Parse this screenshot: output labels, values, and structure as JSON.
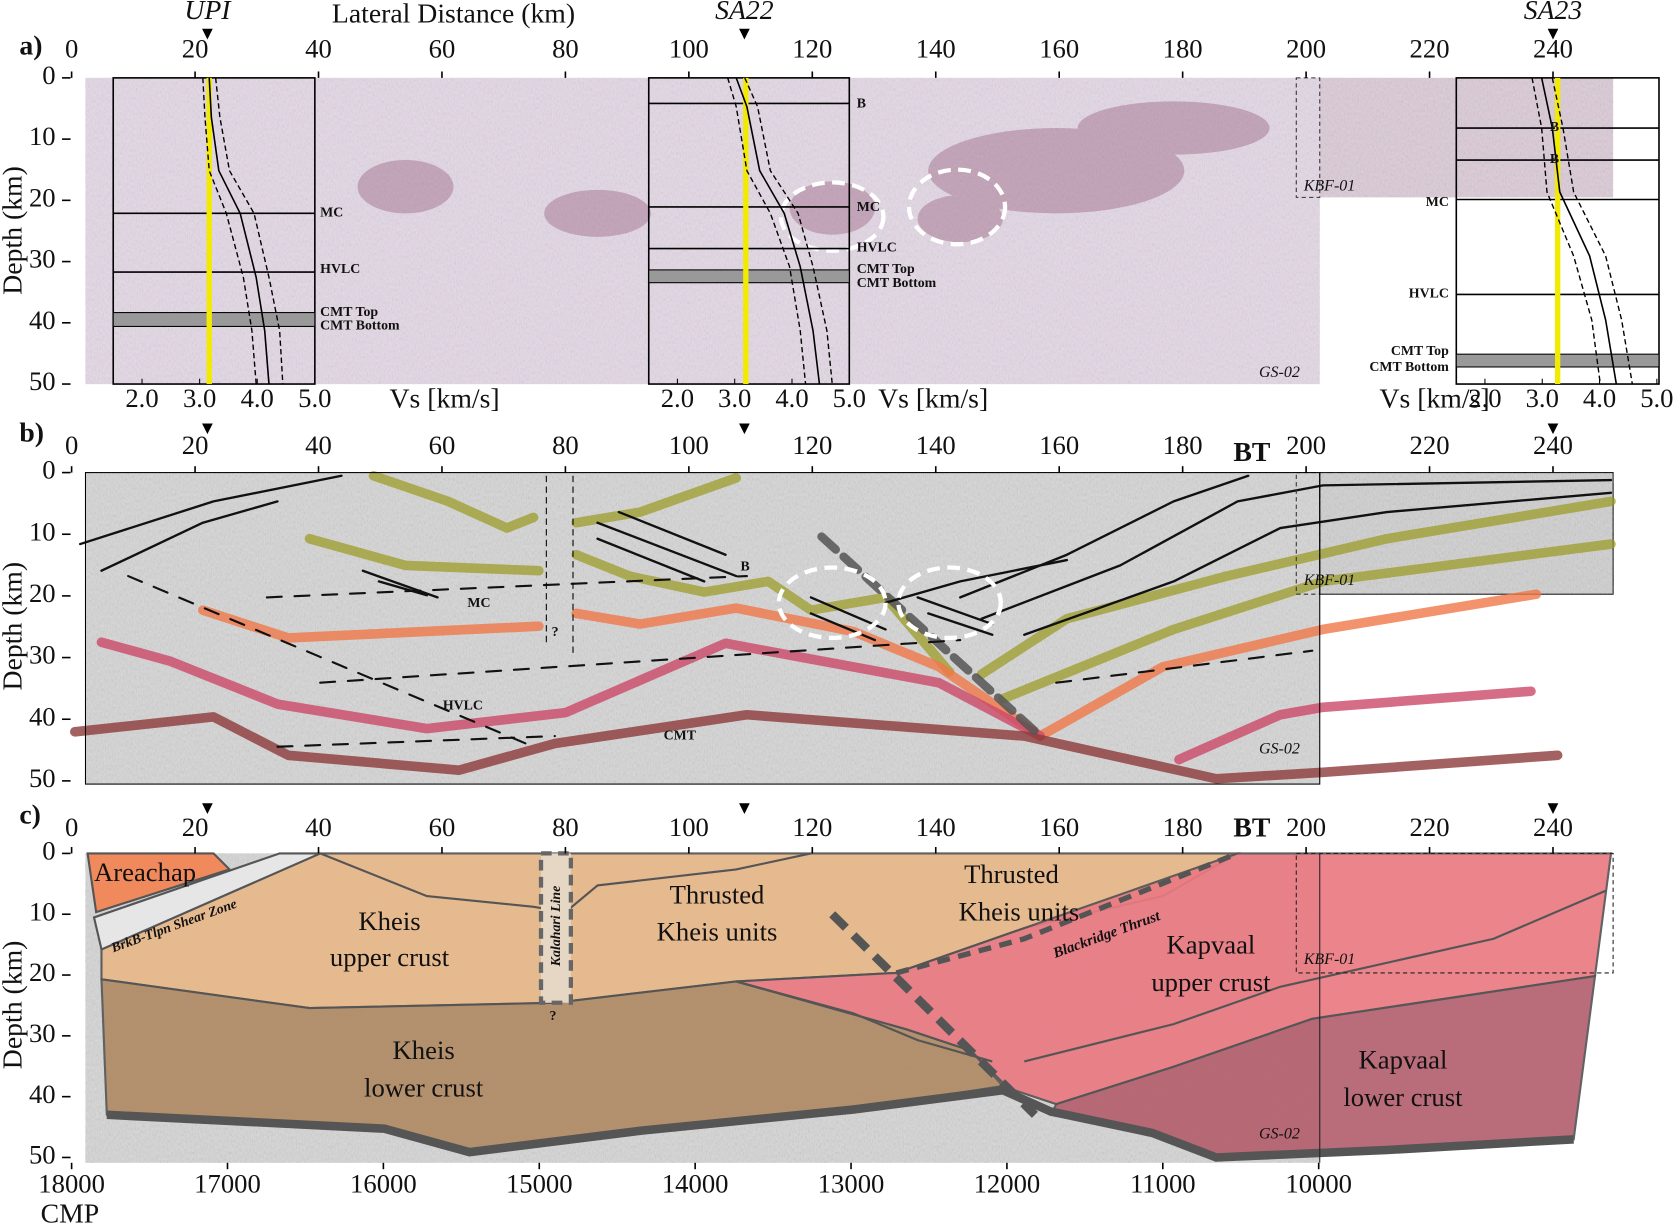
{
  "panels": [
    {
      "label": "a)",
      "insets": [
        {
          "labels": [
            "MC",
            "HVLC",
            "CMT Top",
            "CMT Bottom"
          ]
        },
        {
          "labels": [
            "B",
            "MC",
            "HVLC",
            "CMT Top",
            "CMT Bottom"
          ]
        },
        {
          "labels": [
            "B",
            "B",
            "MC",
            "HVLC",
            "CMT Top",
            "CMT Bottom"
          ]
        }
      ],
      "profiles": [
        "KBF-01",
        "GS-02"
      ]
    },
    {
      "label": "b)",
      "annotations": [
        "B",
        "MC",
        "?",
        "HVLC",
        "CMT"
      ],
      "profiles": [
        "KBF-01",
        "GS-02"
      ],
      "thrust": "BT"
    },
    {
      "label": "c)",
      "units": [
        [
          "Areachap"
        ],
        [
          "BrkB-Tlpn Shear Zone"
        ],
        [
          "Kheis",
          "upper crust"
        ],
        [
          "Kalahari Line"
        ],
        [
          "?"
        ],
        [
          "Thrusted",
          "Kheis units"
        ],
        [
          "Thrusted",
          "Kheis units"
        ],
        [
          "Blackridge Thrust"
        ],
        [
          "Kapvaal",
          "upper crust"
        ],
        [
          "Kheis",
          "lower crust"
        ],
        [
          "Kapvaal",
          "lower crust"
        ]
      ],
      "profiles": [
        "KBF-01",
        "GS-02"
      ],
      "thrust": "BT"
    }
  ],
  "distance_axis": {
    "label": "Lateral Distance (km)",
    "lim": [
      0,
      250
    ],
    "ticks": [
      0,
      20,
      40,
      60,
      80,
      100,
      120,
      140,
      160,
      180,
      200,
      220,
      240
    ]
  },
  "depth_axis": {
    "label": "Depth (km)",
    "lim": [
      0,
      50
    ],
    "ticks": [
      0,
      10,
      20,
      30,
      40,
      50
    ]
  },
  "vs_axis": {
    "label": "Vs [km/s]",
    "lim": [
      1.5,
      5
    ],
    "ticks": [
      {
        "value": 2,
        "label": "2.0"
      },
      {
        "value": 3,
        "label": "3.0"
      },
      {
        "value": 4,
        "label": "4.0"
      },
      {
        "value": 5,
        "label": "5.0"
      }
    ]
  },
  "cmp_axis": {
    "label": "CMP",
    "lim": [
      18000,
      10000
    ],
    "ticks": [
      18000,
      17000,
      16000,
      15000,
      14000,
      13000,
      12000,
      11000,
      10000
    ]
  },
  "stations": [
    {
      "name": "UPI",
      "distance": 22
    },
    {
      "name": "SA22",
      "distance": 109
    },
    {
      "name": "SA23",
      "distance": 240
    }
  ]
}
